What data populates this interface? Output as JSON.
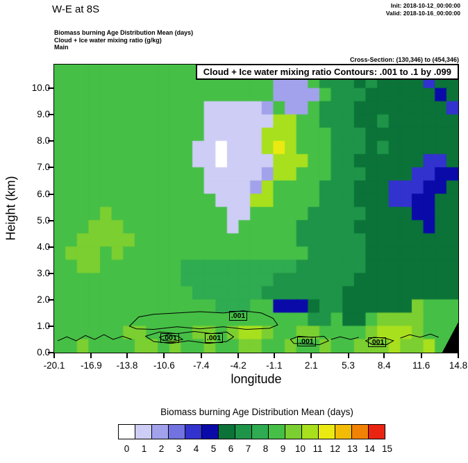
{
  "header": {
    "title": "W-E at 8S",
    "init_label": "Init: 2018-10-12_00:00:00",
    "valid_label": "Valid: 2018-10-16_00:00:00",
    "subtitle_lines": [
      "Biomass burning Age Distribution Mean  (days)",
      "Cloud + Ice water mixing ratio  (g/kg)",
      "Main"
    ],
    "cross_section_label": "Cross-Section: (130,346) to (454,346)"
  },
  "plot": {
    "overlay_title": "Cloud + Ice water mixing ratio Contours: .001 to .1 by .099",
    "xlabel": "longitude",
    "ylabel": "Height (km)",
    "x_ticks": [
      "-20.1",
      "-16.9",
      "-13.8",
      "-10.6",
      "-7.4",
      "-4.2",
      "-1.1",
      "2.1",
      "5.3",
      "8.4",
      "11.6",
      "14.8"
    ],
    "y_ticks": [
      "0.0",
      "1.0",
      "2.0",
      "3.0",
      "4.0",
      "5.0",
      "6.0",
      "7.0",
      "8.0",
      "9.0",
      "10.0"
    ]
  },
  "colorbar": {
    "title": "Biomass burning Age Distribution Mean  (days)",
    "tick_labels": [
      "0",
      "1",
      "2",
      "3",
      "4",
      "5",
      "6",
      "7",
      "8",
      "9",
      "10",
      "11",
      "12",
      "13",
      "14",
      "15"
    ],
    "colors": [
      "#ffffff",
      "#cdcdf5",
      "#a2a2ec",
      "#7272e0",
      "#3232cf",
      "#0a0aa8",
      "#0b7338",
      "#1e9448",
      "#2fab51",
      "#46bf46",
      "#7ccf30",
      "#a8e01e",
      "#eaea12",
      "#f2bc06",
      "#f28205",
      "#ea2410"
    ]
  },
  "chart_data": {
    "type": "heatmap",
    "title": "Biomass burning Age Distribution Mean (days)",
    "xlabel": "longitude",
    "ylabel": "Height (km)",
    "x_range": [
      -20.1,
      14.8
    ],
    "y_range": [
      0,
      10.9
    ],
    "grid_y_range": [
      0,
      10.5
    ],
    "legend_values": [
      0,
      1,
      2,
      3,
      4,
      5,
      6,
      7,
      8,
      9,
      10,
      11,
      12,
      13,
      14,
      15
    ],
    "palette": [
      "#ffffff",
      "#cdcdf5",
      "#a2a2ec",
      "#7272e0",
      "#3232cf",
      "#0a0aa8",
      "#0b7338",
      "#1e9448",
      "#2fab51",
      "#46bf46",
      "#7ccf30",
      "#a8e01e",
      "#eaea12",
      "#f2bc06",
      "#f28205",
      "#ea2410"
    ],
    "grid_rows_top_to_bottom": [
      [
        "99999",
        "99999",
        "99999",
        "99992",
        "22977",
        "76766",
        "66466"
      ],
      [
        "99999",
        "99999",
        "99999",
        "99992",
        "22297",
        "77666",
        "66656"
      ],
      [
        "99999",
        "99999",
        "99911",
        "11129",
        "22977",
        "76666",
        "66664"
      ],
      [
        "99999",
        "99999",
        "99911",
        "1111b",
        "b9977",
        "76676",
        "66666"
      ],
      [
        "99999",
        "99999",
        "99911",
        "111bb",
        "b9997",
        "77666",
        "66666"
      ],
      [
        "99999",
        "99999",
        "99110",
        "111bc",
        "b9997",
        "77676",
        "66666"
      ],
      [
        "99999",
        "99999",
        "99110",
        "1111b",
        "bb997",
        "76666",
        "66446"
      ],
      [
        "99999",
        "99999",
        "99911",
        "1112b",
        "b9997",
        "77666",
        "64455"
      ],
      [
        "99999",
        "99999",
        "99911",
        "112b9",
        "99977",
        "76664",
        "44556"
      ],
      [
        "99999",
        "99999",
        "99991",
        "11bb9",
        "99977",
        "76664",
        "45566"
      ],
      [
        "9999a",
        "99999",
        "99999",
        "11999",
        "99777",
        "77666",
        "65566"
      ],
      [
        "999aa",
        "a9999",
        "99999",
        "19999",
        "97777",
        "76666",
        "66566"
      ],
      [
        "99aaa",
        "aa999",
        "99999",
        "99999",
        "97777",
        "77666",
        "66666"
      ],
      [
        "9aaa9",
        "a9999",
        "99999",
        "99999",
        "99777",
        "77666",
        "66666"
      ],
      [
        "99aa9",
        "99999",
        "98888",
        "88888",
        "87777",
        "77666",
        "66666"
      ],
      [
        "99999",
        "99999",
        "98888",
        "88887",
        "77777",
        "76666",
        "66666"
      ],
      [
        "99999",
        "99999",
        "99888",
        "88877",
        "77777",
        "66666",
        "66666"
      ],
      [
        "99999",
        "99999",
        "99998",
        "88995",
        "55677",
        "66666",
        "6a999"
      ],
      [
        "99999",
        "99999",
        "99999",
        "99999",
        "99779",
        "669aa",
        "aa999"
      ],
      [
        "99999",
        "9aa99",
        "99aa9",
        "abba9",
        "9aa99",
        "99abb",
        "ba999"
      ],
      [
        "99a99",
        "99aa9",
        "a99a9",
        "9aa99",
        "a99a9",
        "9aaab",
        "aab99"
      ]
    ],
    "contour_overlay": {
      "variable": "Cloud + Ice water mixing ratio (g/kg)",
      "levels_text": ".001 to .1 by .099",
      "labels": [
        {
          "text": ".001",
          "lon": -4.1,
          "height": 1.39
        },
        {
          "text": ".001",
          "lon": -10.0,
          "height": 0.55
        },
        {
          "text": ".001",
          "lon": -6.2,
          "height": 0.55
        },
        {
          "text": ".001",
          "lon": 1.8,
          "height": 0.42
        },
        {
          "text": ".001",
          "lon": 7.9,
          "height": 0.39
        }
      ],
      "paths": [
        {
          "closed": true,
          "points": [
            [
              -13.6,
              1.0
            ],
            [
              -12.8,
              1.35
            ],
            [
              -11.5,
              1.45
            ],
            [
              -9.5,
              1.5
            ],
            [
              -7.5,
              1.55
            ],
            [
              -5.5,
              1.5
            ],
            [
              -3.8,
              1.58
            ],
            [
              -2.2,
              1.5
            ],
            [
              -1.2,
              1.3
            ],
            [
              -0.8,
              1.05
            ],
            [
              -1.5,
              0.92
            ],
            [
              -3.5,
              0.88
            ],
            [
              -5.5,
              0.98
            ],
            [
              -7.5,
              0.9
            ],
            [
              -9.5,
              0.98
            ],
            [
              -11.5,
              0.88
            ],
            [
              -13.0,
              0.9
            ]
          ]
        },
        {
          "closed": true,
          "points": [
            [
              -12.2,
              0.62
            ],
            [
              -11.0,
              0.78
            ],
            [
              -9.5,
              0.72
            ],
            [
              -8.0,
              0.8
            ],
            [
              -6.5,
              0.72
            ],
            [
              -5.2,
              0.78
            ],
            [
              -4.6,
              0.6
            ],
            [
              -5.2,
              0.42
            ],
            [
              -6.8,
              0.35
            ],
            [
              -8.5,
              0.45
            ],
            [
              -10.0,
              0.35
            ],
            [
              -11.5,
              0.42
            ]
          ]
        },
        {
          "closed": true,
          "points": [
            [
              -11.0,
              0.58
            ],
            [
              -10.3,
              0.68
            ],
            [
              -9.4,
              0.62
            ],
            [
              -9.0,
              0.5
            ],
            [
              -9.8,
              0.42
            ],
            [
              -10.7,
              0.46
            ]
          ]
        },
        {
          "closed": true,
          "points": [
            [
              0.3,
              0.5
            ],
            [
              1.0,
              0.62
            ],
            [
              2.2,
              0.58
            ],
            [
              3.2,
              0.62
            ],
            [
              3.6,
              0.45
            ],
            [
              2.8,
              0.3
            ],
            [
              1.5,
              0.33
            ],
            [
              0.6,
              0.35
            ]
          ]
        },
        {
          "closed": true,
          "points": [
            [
              6.8,
              0.45
            ],
            [
              7.5,
              0.58
            ],
            [
              8.5,
              0.55
            ],
            [
              9.2,
              0.45
            ],
            [
              8.6,
              0.3
            ],
            [
              7.4,
              0.3
            ]
          ]
        },
        {
          "closed": false,
          "points": [
            [
              -19.8,
              0.45
            ],
            [
              -19.0,
              0.6
            ],
            [
              -18.2,
              0.45
            ],
            [
              -17.4,
              0.65
            ],
            [
              -16.6,
              0.5
            ],
            [
              -15.8,
              0.68
            ],
            [
              -15.0,
              0.5
            ],
            [
              -14.2,
              0.62
            ],
            [
              -13.4,
              0.5
            ]
          ]
        },
        {
          "closed": false,
          "points": [
            [
              9.8,
              0.55
            ],
            [
              10.6,
              0.68
            ],
            [
              11.5,
              0.58
            ],
            [
              12.4,
              0.7
            ],
            [
              13.1,
              0.58
            ]
          ]
        },
        {
          "closed": false,
          "points": [
            [
              3.8,
              0.5
            ],
            [
              4.6,
              0.6
            ],
            [
              5.5,
              0.5
            ],
            [
              6.2,
              0.58
            ]
          ]
        }
      ]
    },
    "terrain": {
      "color": "#000000",
      "points": [
        [
          13.4,
          0.0
        ],
        [
          14.8,
          0.0
        ],
        [
          14.8,
          1.15
        ]
      ]
    }
  }
}
